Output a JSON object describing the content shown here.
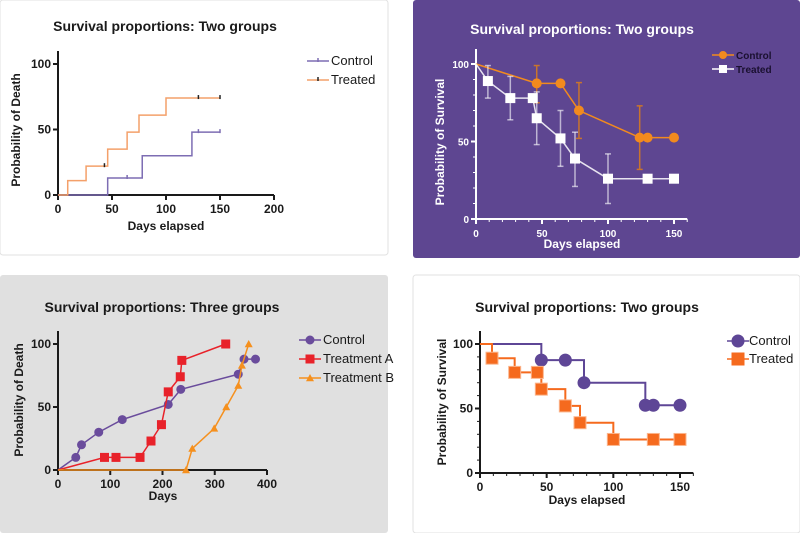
{
  "chart_data": [
    {
      "type": "line",
      "style": "step",
      "title": "Survival proportions: Two groups",
      "xlabel": "Days elapsed",
      "ylabel": "Probability of Death",
      "xlim": [
        0,
        200
      ],
      "ylim": [
        0,
        110
      ],
      "xticks": [
        0,
        50,
        100,
        150,
        200
      ],
      "yticks": [
        0,
        50,
        100
      ],
      "background": "#ffffff",
      "text_color": "#1a1a1a",
      "legend": "top-right",
      "grid": false,
      "series": [
        {
          "name": "Control",
          "color": "#7d6db3",
          "marker": "tick",
          "x": [
            0,
            46,
            78,
            124,
            150
          ],
          "y": [
            0,
            13,
            30,
            48,
            48
          ],
          "censored_x": [
            64,
            130,
            150
          ]
        },
        {
          "name": "Treated",
          "color": "#f4a06a",
          "marker": "tick",
          "x": [
            0,
            9,
            26,
            46,
            64,
            75,
            100,
            150
          ],
          "y": [
            0,
            11,
            22,
            35,
            48,
            61,
            74,
            74
          ],
          "censored_x": [
            43,
            130,
            150
          ]
        }
      ]
    },
    {
      "type": "line",
      "style": "line-errorbar",
      "title": "Survival proportions: Two groups",
      "xlabel": "Days elapsed",
      "ylabel": "Probability of Survival",
      "xlim": [
        0,
        160
      ],
      "ylim": [
        0,
        110
      ],
      "xticks": [
        0,
        50,
        100,
        150
      ],
      "yticks": [
        0,
        50,
        100
      ],
      "background": "#5e4691",
      "text_color": "#ffffff",
      "legend": "top-right",
      "grid": false,
      "series": [
        {
          "name": "Control",
          "color": "#f28a1e",
          "marker": "circle",
          "x": [
            0,
            46,
            64,
            78,
            124,
            130,
            150
          ],
          "y": [
            100,
            87.5,
            87.5,
            70,
            52.5,
            52.5,
            52.5
          ],
          "error_low": [
            null,
            75,
            null,
            52,
            32,
            null,
            null
          ],
          "error_high": [
            null,
            99,
            null,
            88,
            73,
            null,
            null
          ]
        },
        {
          "name": "Treated",
          "color": "#ffffff",
          "marker": "square",
          "x": [
            0,
            9,
            26,
            43,
            46,
            64,
            75,
            100,
            130,
            150
          ],
          "y": [
            100,
            89,
            78,
            78,
            65,
            52,
            39,
            26,
            26,
            26
          ],
          "error_low": [
            null,
            78,
            64,
            null,
            48,
            34,
            21,
            10,
            null,
            null
          ],
          "error_high": [
            null,
            99,
            92,
            null,
            82,
            70,
            56,
            42,
            null,
            null
          ]
        }
      ]
    },
    {
      "type": "line",
      "style": "line",
      "title": "Survival proportions: Three groups",
      "xlabel": "Days",
      "ylabel": "Probability of Death",
      "xlim": [
        0,
        400
      ],
      "ylim": [
        0,
        110
      ],
      "xticks": [
        0,
        100,
        200,
        300,
        400
      ],
      "yticks": [
        0,
        50,
        100
      ],
      "background": "#e0e0e0",
      "text_color": "#1a1a1a",
      "legend": "top-right",
      "grid": false,
      "series": [
        {
          "name": "Control",
          "color": "#6a4c9c",
          "marker": "circle",
          "x": [
            0,
            34,
            45,
            78,
            123,
            211,
            235,
            345,
            356,
            378
          ],
          "y": [
            0,
            10,
            20,
            30,
            40,
            52,
            64,
            76,
            88,
            88
          ]
        },
        {
          "name": "Treatment A",
          "color": "#e8222a",
          "marker": "square",
          "x": [
            0,
            89,
            111,
            157,
            178,
            198,
            211,
            234,
            237,
            321
          ],
          "y": [
            0,
            10,
            10,
            10,
            23,
            36,
            62,
            74,
            87,
            100
          ]
        },
        {
          "name": "Treatment B",
          "color": "#f5901e",
          "marker": "triangle",
          "x": [
            0,
            245,
            257,
            299,
            322,
            345,
            352,
            365
          ],
          "y": [
            0,
            0,
            17,
            33,
            50,
            67,
            83,
            100
          ]
        }
      ]
    },
    {
      "type": "line",
      "style": "step",
      "title": "Survival proportions: Two groups",
      "xlabel": "Days elapsed",
      "ylabel": "Probability of Survival",
      "xlim": [
        0,
        160
      ],
      "ylim": [
        0,
        110
      ],
      "xticks": [
        0,
        50,
        100,
        150
      ],
      "yticks": [
        0,
        50,
        100
      ],
      "background": "#ffffff",
      "text_color": "#1a1a1a",
      "legend": "top-right",
      "grid": false,
      "series": [
        {
          "name": "Control",
          "color": "#5e4696",
          "marker": "circle",
          "x": [
            0,
            46,
            78,
            124,
            150
          ],
          "y": [
            100,
            87.5,
            70,
            52.5,
            52.5
          ],
          "marker_x": [
            46,
            64,
            78,
            124,
            130,
            150
          ],
          "marker_y": [
            87.5,
            87.5,
            70,
            52.5,
            52.5,
            52.5
          ]
        },
        {
          "name": "Treated",
          "color": "#f56a1e",
          "marker": "square",
          "x": [
            0,
            9,
            26,
            46,
            64,
            75,
            100,
            150
          ],
          "y": [
            100,
            89,
            78,
            65,
            52,
            39,
            26,
            26
          ],
          "marker_x": [
            9,
            26,
            43,
            46,
            64,
            75,
            100,
            130,
            150
          ],
          "marker_y": [
            89,
            78,
            78,
            65,
            52,
            39,
            26,
            26,
            26
          ]
        }
      ]
    }
  ]
}
